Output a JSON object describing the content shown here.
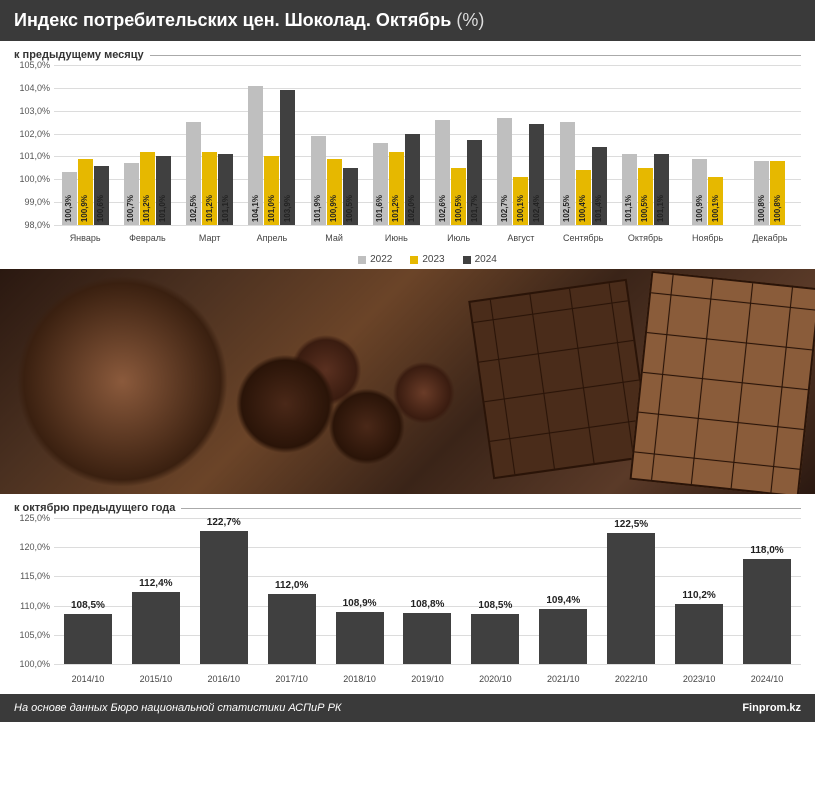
{
  "header": {
    "title": "Индекс потребительских цен. Шоколад. Октябрь",
    "suffix": "(%)"
  },
  "chart_monthly": {
    "type": "grouped-bar",
    "title": "к предыдущему месяцу",
    "y_axis": {
      "min": 98.0,
      "max": 105.0,
      "step": 1.0,
      "format_suffix": "%"
    },
    "series_colors": {
      "2022": "#bfbfbf",
      "2023": "#e6b800",
      "2024": "#404040"
    },
    "legend": [
      "2022",
      "2023",
      "2024"
    ],
    "months": [
      {
        "name": "Январь",
        "v": {
          "2022": "100,3%",
          "2023": "100,9%",
          "2024": "100,6%"
        },
        "n": {
          "2022": 100.3,
          "2023": 100.9,
          "2024": 100.6
        }
      },
      {
        "name": "Февраль",
        "v": {
          "2022": "100,7%",
          "2023": "101,2%",
          "2024": "101,0%"
        },
        "n": {
          "2022": 100.7,
          "2023": 101.2,
          "2024": 101.0
        }
      },
      {
        "name": "Март",
        "v": {
          "2022": "102,5%",
          "2023": "101,2%",
          "2024": "101,1%"
        },
        "n": {
          "2022": 102.5,
          "2023": 101.2,
          "2024": 101.1
        }
      },
      {
        "name": "Апрель",
        "v": {
          "2022": "104,1%",
          "2023": "101,0%",
          "2024": "103,9%"
        },
        "n": {
          "2022": 104.1,
          "2023": 101.0,
          "2024": 103.9
        }
      },
      {
        "name": "Май",
        "v": {
          "2022": "101,9%",
          "2023": "100,9%",
          "2024": "100,5%"
        },
        "n": {
          "2022": 101.9,
          "2023": 100.9,
          "2024": 100.5
        }
      },
      {
        "name": "Июнь",
        "v": {
          "2022": "101,6%",
          "2023": "101,2%",
          "2024": "102,0%"
        },
        "n": {
          "2022": 101.6,
          "2023": 101.2,
          "2024": 102.0
        }
      },
      {
        "name": "Июль",
        "v": {
          "2022": "102,6%",
          "2023": "100,5%",
          "2024": "101,7%"
        },
        "n": {
          "2022": 102.6,
          "2023": 100.5,
          "2024": 101.7
        }
      },
      {
        "name": "Август",
        "v": {
          "2022": "102,7%",
          "2023": "100,1%",
          "2024": "102,4%"
        },
        "n": {
          "2022": 102.7,
          "2023": 100.1,
          "2024": 102.4
        }
      },
      {
        "name": "Сентябрь",
        "v": {
          "2022": "102,5%",
          "2023": "100,4%",
          "2024": "101,4%"
        },
        "n": {
          "2022": 102.5,
          "2023": 100.4,
          "2024": 101.4
        }
      },
      {
        "name": "Октябрь",
        "v": {
          "2022": "101,1%",
          "2023": "100,5%",
          "2024": "101,1%"
        },
        "n": {
          "2022": 101.1,
          "2023": 100.5,
          "2024": 101.1
        }
      },
      {
        "name": "Ноябрь",
        "v": {
          "2022": "100,9%",
          "2023": "100,1%"
        },
        "n": {
          "2022": 100.9,
          "2023": 100.1
        }
      },
      {
        "name": "Декабрь",
        "v": {
          "2022": "100,8%",
          "2023": "100,8%"
        },
        "n": {
          "2022": 100.8,
          "2023": 100.8
        }
      }
    ]
  },
  "chart_annual": {
    "type": "bar",
    "title": "к октябрю предыдущего года",
    "y_axis": {
      "min": 100.0,
      "max": 125.0,
      "step": 5.0,
      "format_suffix": "%"
    },
    "bar_color": "#404040",
    "points": [
      {
        "x": "2014/10",
        "label": "108,5%",
        "n": 108.5
      },
      {
        "x": "2015/10",
        "label": "112,4%",
        "n": 112.4
      },
      {
        "x": "2016/10",
        "label": "122,7%",
        "n": 122.7
      },
      {
        "x": "2017/10",
        "label": "112,0%",
        "n": 112.0
      },
      {
        "x": "2018/10",
        "label": "108,9%",
        "n": 108.9
      },
      {
        "x": "2019/10",
        "label": "108,8%",
        "n": 108.8
      },
      {
        "x": "2020/10",
        "label": "108,5%",
        "n": 108.5
      },
      {
        "x": "2021/10",
        "label": "109,4%",
        "n": 109.4
      },
      {
        "x": "2022/10",
        "label": "122,5%",
        "n": 122.5
      },
      {
        "x": "2023/10",
        "label": "110,2%",
        "n": 110.2
      },
      {
        "x": "2024/10",
        "label": "118,0%",
        "n": 118.0
      }
    ]
  },
  "footer": {
    "source": "На основе данных Бюро национальной статистики АСПиР РК",
    "site": "Finprom.kz"
  },
  "colors": {
    "header_bg": "#3a3a3a",
    "grid": "#dcdcdc",
    "text": "#333333",
    "background": "#ffffff"
  }
}
